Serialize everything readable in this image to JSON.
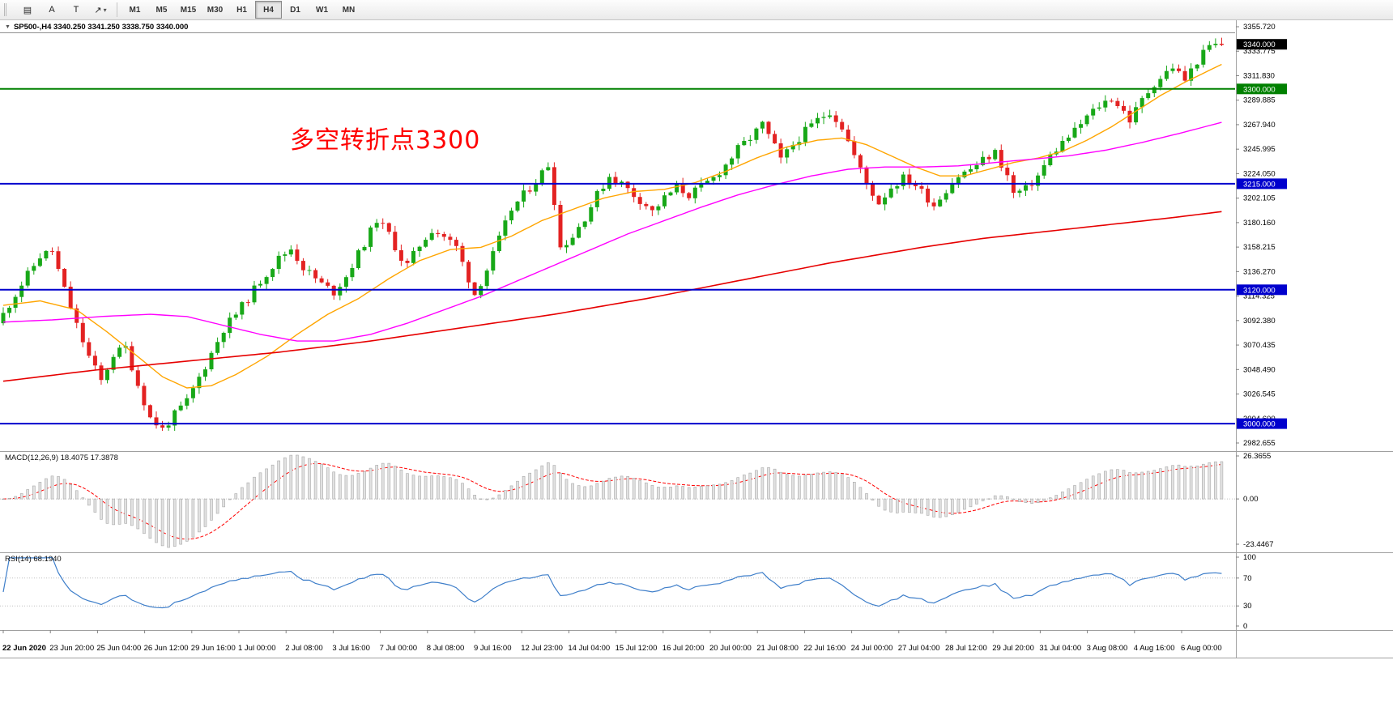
{
  "toolbar": {
    "tools": [
      {
        "name": "new-chart-icon",
        "glyph": "▤"
      },
      {
        "name": "text-label-a-button",
        "glyph": "A"
      },
      {
        "name": "text-box-button",
        "glyph": "T"
      },
      {
        "name": "arrow-tools-button",
        "glyph": "↗",
        "caret": true
      }
    ],
    "timeframes": [
      "M1",
      "M5",
      "M15",
      "M30",
      "H1",
      "H4",
      "D1",
      "W1",
      "MN"
    ],
    "active_timeframe": "H4"
  },
  "chart": {
    "symbol": "SP500-",
    "period": "H4",
    "ohlc": {
      "open": "3340.250",
      "high": "3341.250",
      "low": "3338.750",
      "close": "3340.000"
    },
    "symbol_line": "SP500-,H4  3340.250 3341.250 3338.750 3340.000",
    "annotation": {
      "text": "多空转折点3300",
      "color": "#ff0000"
    },
    "price_axis": {
      "labels": [
        "3355.720",
        "3333.775",
        "3311.830",
        "3289.885",
        "3267.940",
        "3245.995",
        "3224.050",
        "3202.105",
        "3180.160",
        "3158.215",
        "3136.270",
        "3114.325",
        "3092.380",
        "3070.435",
        "3048.490",
        "3026.545",
        "3004.600",
        "2982.655"
      ]
    },
    "price_tags": [
      {
        "value": "3340.000",
        "bg": "#000000"
      },
      {
        "value": "3300.000",
        "bg": "#008000"
      },
      {
        "value": "3215.000",
        "bg": "#0000cd"
      },
      {
        "value": "3120.000",
        "bg": "#0000cd"
      },
      {
        "value": "3000.000",
        "bg": "#0000cd"
      }
    ],
    "hlines": [
      {
        "price": 3350.3,
        "color": "#909090",
        "width": 1
      },
      {
        "price": 3300.0,
        "color": "#008000",
        "width": 2
      },
      {
        "price": 3215.0,
        "color": "#0000cd",
        "width": 2
      },
      {
        "price": 3120.0,
        "color": "#0000cd",
        "width": 2
      },
      {
        "price": 3000.0,
        "color": "#0000cd",
        "width": 2
      }
    ],
    "candles": {
      "count": 200,
      "close_anchors": [
        [
          0,
          3098
        ],
        [
          3,
          3125
        ],
        [
          6,
          3150
        ],
        [
          8,
          3155
        ],
        [
          10,
          3120
        ],
        [
          12,
          3088
        ],
        [
          14,
          3060
        ],
        [
          16,
          3038
        ],
        [
          18,
          3062
        ],
        [
          20,
          3068
        ],
        [
          22,
          3035
        ],
        [
          24,
          3005
        ],
        [
          26,
          2995
        ],
        [
          28,
          3008
        ],
        [
          30,
          3020
        ],
        [
          33,
          3052
        ],
        [
          36,
          3085
        ],
        [
          39,
          3105
        ],
        [
          42,
          3128
        ],
        [
          45,
          3148
        ],
        [
          47,
          3157
        ],
        [
          49,
          3140
        ],
        [
          52,
          3125
        ],
        [
          54,
          3118
        ],
        [
          56,
          3132
        ],
        [
          58,
          3152
        ],
        [
          60,
          3172
        ],
        [
          61,
          3183
        ],
        [
          63,
          3170
        ],
        [
          65,
          3148
        ],
        [
          66,
          3142
        ],
        [
          68,
          3160
        ],
        [
          70,
          3174
        ],
        [
          72,
          3168
        ],
        [
          74,
          3158
        ],
        [
          76,
          3130
        ],
        [
          77,
          3116
        ],
        [
          79,
          3138
        ],
        [
          81,
          3165
        ],
        [
          83,
          3192
        ],
        [
          85,
          3205
        ],
        [
          87,
          3218
        ],
        [
          89,
          3232
        ],
        [
          90,
          3200
        ],
        [
          91,
          3158
        ],
        [
          93,
          3168
        ],
        [
          95,
          3185
        ],
        [
          97,
          3205
        ],
        [
          99,
          3222
        ],
        [
          101,
          3215
        ],
        [
          103,
          3205
        ],
        [
          105,
          3196
        ],
        [
          106,
          3190
        ],
        [
          108,
          3202
        ],
        [
          110,
          3212
        ],
        [
          112,
          3205
        ],
        [
          114,
          3212
        ],
        [
          116,
          3220
        ],
        [
          118,
          3232
        ],
        [
          120,
          3246
        ],
        [
          122,
          3256
        ],
        [
          124,
          3268
        ],
        [
          126,
          3248
        ],
        [
          127,
          3236
        ],
        [
          129,
          3250
        ],
        [
          131,
          3262
        ],
        [
          133,
          3272
        ],
        [
          135,
          3280
        ],
        [
          137,
          3266
        ],
        [
          139,
          3240
        ],
        [
          141,
          3215
        ],
        [
          143,
          3198
        ],
        [
          145,
          3212
        ],
        [
          147,
          3220
        ],
        [
          149,
          3214
        ],
        [
          151,
          3202
        ],
        [
          152,
          3196
        ],
        [
          154,
          3210
        ],
        [
          156,
          3222
        ],
        [
          158,
          3228
        ],
        [
          160,
          3236
        ],
        [
          162,
          3243
        ],
        [
          164,
          3222
        ],
        [
          165,
          3206
        ],
        [
          167,
          3210
        ],
        [
          169,
          3222
        ],
        [
          171,
          3240
        ],
        [
          173,
          3252
        ],
        [
          175,
          3262
        ],
        [
          177,
          3275
        ],
        [
          179,
          3285
        ],
        [
          181,
          3292
        ],
        [
          183,
          3280
        ],
        [
          184,
          3272
        ],
        [
          186,
          3290
        ],
        [
          188,
          3305
        ],
        [
          190,
          3315
        ],
        [
          191,
          3320
        ],
        [
          193,
          3308
        ],
        [
          195,
          3325
        ],
        [
          197,
          3338
        ],
        [
          199,
          3340
        ]
      ]
    },
    "moving_averages": [
      {
        "name": "fast-orange",
        "color": "#ffa500",
        "width": 1.4,
        "anchors": [
          [
            0,
            3106
          ],
          [
            6,
            3110
          ],
          [
            12,
            3102
          ],
          [
            17,
            3082
          ],
          [
            22,
            3060
          ],
          [
            26,
            3042
          ],
          [
            30,
            3032
          ],
          [
            34,
            3034
          ],
          [
            38,
            3044
          ],
          [
            43,
            3060
          ],
          [
            48,
            3080
          ],
          [
            53,
            3098
          ],
          [
            58,
            3112
          ],
          [
            63,
            3130
          ],
          [
            68,
            3146
          ],
          [
            73,
            3156
          ],
          [
            78,
            3158
          ],
          [
            83,
            3168
          ],
          [
            88,
            3182
          ],
          [
            93,
            3192
          ],
          [
            98,
            3202
          ],
          [
            103,
            3208
          ],
          [
            108,
            3210
          ],
          [
            113,
            3216
          ],
          [
            118,
            3226
          ],
          [
            123,
            3238
          ],
          [
            128,
            3248
          ],
          [
            133,
            3254
          ],
          [
            137,
            3256
          ],
          [
            141,
            3250
          ],
          [
            145,
            3240
          ],
          [
            149,
            3230
          ],
          [
            153,
            3222
          ],
          [
            157,
            3222
          ],
          [
            161,
            3228
          ],
          [
            165,
            3234
          ],
          [
            169,
            3238
          ],
          [
            173,
            3244
          ],
          [
            177,
            3254
          ],
          [
            181,
            3266
          ],
          [
            185,
            3280
          ],
          [
            189,
            3294
          ],
          [
            193,
            3306
          ],
          [
            196,
            3314
          ],
          [
            199,
            3322
          ]
        ]
      },
      {
        "name": "mid-magenta",
        "color": "#ff00ff",
        "width": 1.4,
        "anchors": [
          [
            0,
            3091
          ],
          [
            8,
            3093
          ],
          [
            16,
            3096
          ],
          [
            24,
            3098
          ],
          [
            30,
            3096
          ],
          [
            36,
            3088
          ],
          [
            42,
            3080
          ],
          [
            48,
            3074
          ],
          [
            54,
            3074
          ],
          [
            60,
            3080
          ],
          [
            66,
            3090
          ],
          [
            72,
            3102
          ],
          [
            78,
            3114
          ],
          [
            84,
            3128
          ],
          [
            90,
            3142
          ],
          [
            96,
            3156
          ],
          [
            102,
            3170
          ],
          [
            108,
            3182
          ],
          [
            114,
            3194
          ],
          [
            120,
            3205
          ],
          [
            126,
            3214
          ],
          [
            132,
            3222
          ],
          [
            138,
            3228
          ],
          [
            144,
            3230
          ],
          [
            150,
            3230
          ],
          [
            156,
            3231
          ],
          [
            162,
            3234
          ],
          [
            168,
            3237
          ],
          [
            174,
            3240
          ],
          [
            180,
            3245
          ],
          [
            186,
            3252
          ],
          [
            192,
            3260
          ],
          [
            199,
            3270
          ]
        ]
      },
      {
        "name": "slow-red",
        "color": "#e60000",
        "width": 1.6,
        "anchors": [
          [
            0,
            3038
          ],
          [
            15,
            3048
          ],
          [
            30,
            3056
          ],
          [
            45,
            3064
          ],
          [
            60,
            3074
          ],
          [
            75,
            3086
          ],
          [
            90,
            3098
          ],
          [
            105,
            3112
          ],
          [
            120,
            3128
          ],
          [
            135,
            3144
          ],
          [
            150,
            3158
          ],
          [
            160,
            3166
          ],
          [
            170,
            3172
          ],
          [
            180,
            3178
          ],
          [
            190,
            3184
          ],
          [
            199,
            3190
          ]
        ]
      }
    ]
  },
  "macd": {
    "label": "MACD(12,26,9) 18.4075 17.3878",
    "fast": 12,
    "slow": 26,
    "signal": 9,
    "axis": [
      "26.3655",
      "0.00",
      "-23.4467"
    ]
  },
  "rsi": {
    "label": "RSI(14) 68.1940",
    "period": 14,
    "levels": [
      70,
      30
    ],
    "axis": [
      "100",
      "70",
      "30",
      "0"
    ]
  },
  "time_axis": {
    "labels": [
      "22 Jun 2020",
      "23 Jun 20:00",
      "25 Jun 04:00",
      "26 Jun 12:00",
      "29 Jun 16:00",
      "1 Jul 00:00",
      "2 Jul 08:00",
      "3 Jul 16:00",
      "7 Jul 00:00",
      "8 Jul 08:00",
      "9 Jul 16:00",
      "12 Jul 23:00",
      "14 Jul 04:00",
      "15 Jul 12:00",
      "16 Jul 20:00",
      "20 Jul 00:00",
      "21 Jul 08:00",
      "22 Jul 16:00",
      "24 Jul 00:00",
      "27 Jul 04:00",
      "28 Jul 12:00",
      "29 Jul 20:00",
      "31 Jul 04:00",
      "3 Aug 08:00",
      "4 Aug 16:00",
      "6 Aug 00:00"
    ]
  },
  "colors": {
    "candle_up": "#18a818",
    "candle_down": "#e32222",
    "macd_bar_fill": "#e2e2e2",
    "macd_bar_stroke": "#a8a8a8",
    "macd_signal": "#ff0000",
    "rsi_line": "#3f7fca",
    "level_dotted": "#c0c0c0",
    "separator": "#a0a0a0",
    "border": "#808080"
  }
}
